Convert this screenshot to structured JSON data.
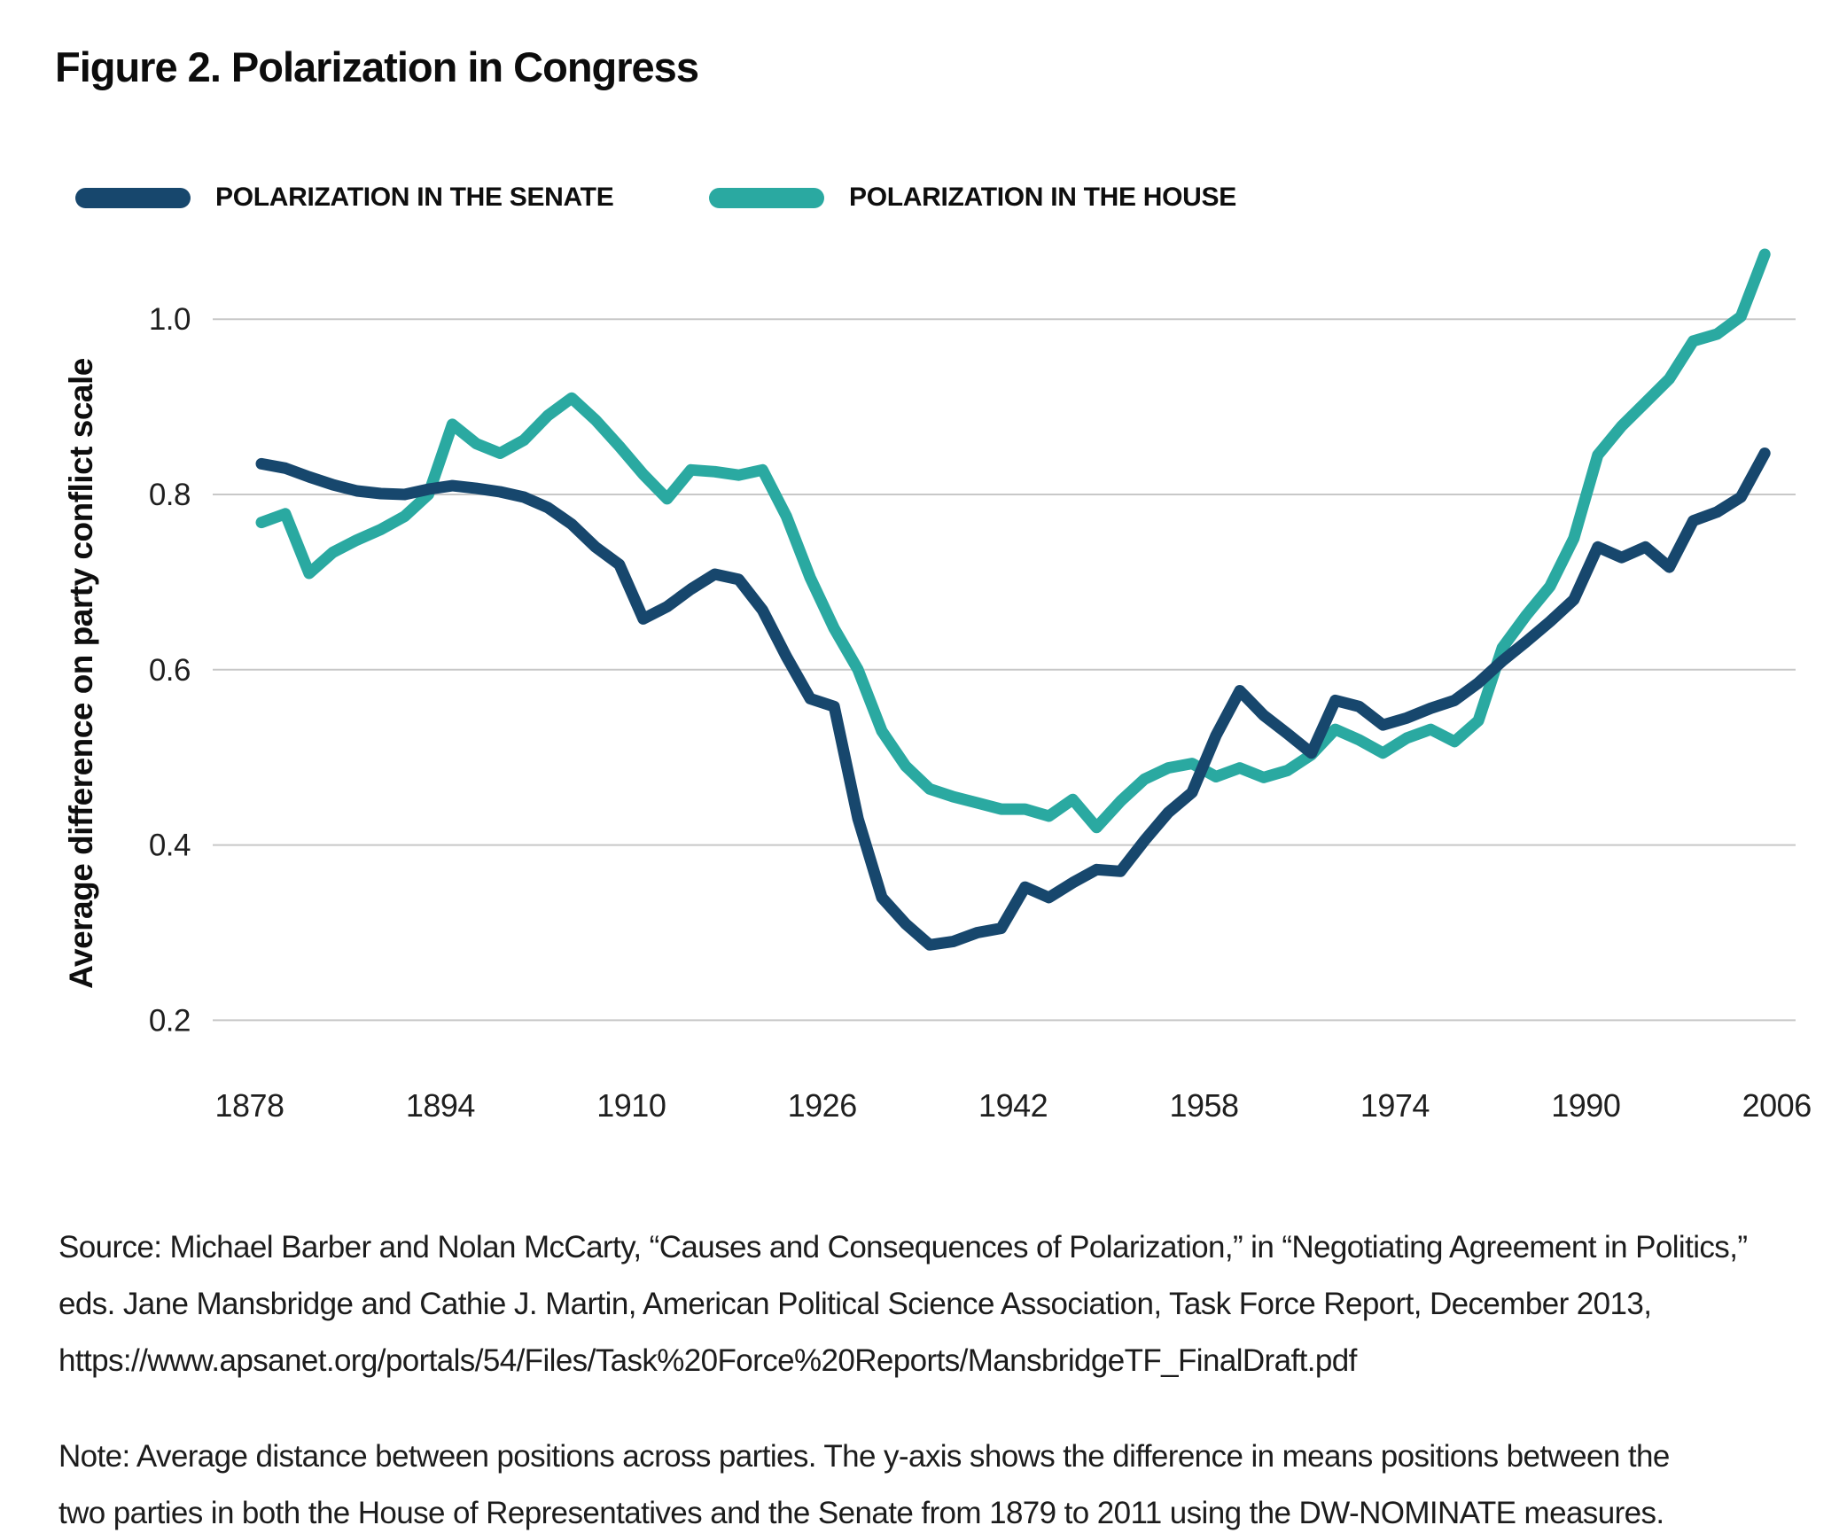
{
  "chart_data": {
    "type": "line",
    "title": "Figure 2. Polarization in Congress",
    "ylabel": "Average difference on party conflict scale",
    "xlabel": "",
    "grid": "horizontal",
    "legend_position": "top-left",
    "ylim": [
      0.13,
      1.12
    ],
    "xlim": [
      1878,
      2010
    ],
    "y_tick_labels": [
      "1.0",
      "0.8",
      "0.6",
      "0.4",
      "0.2"
    ],
    "y_tick_values": [
      1.0,
      0.8,
      0.6,
      0.4,
      0.2
    ],
    "x_tick_labels": [
      "1878",
      "1894",
      "1910",
      "1926",
      "1942",
      "1958",
      "1974",
      "1990",
      "2006"
    ],
    "x": [
      1879,
      1881,
      1883,
      1885,
      1887,
      1889,
      1891,
      1893,
      1895,
      1897,
      1899,
      1901,
      1903,
      1905,
      1907,
      1909,
      1911,
      1913,
      1915,
      1917,
      1919,
      1921,
      1923,
      1925,
      1927,
      1929,
      1931,
      1933,
      1935,
      1937,
      1939,
      1941,
      1943,
      1945,
      1947,
      1949,
      1951,
      1953,
      1955,
      1957,
      1959,
      1961,
      1963,
      1965,
      1967,
      1969,
      1971,
      1973,
      1975,
      1977,
      1979,
      1981,
      1983,
      1985,
      1987,
      1989,
      1991,
      1993,
      1995,
      1997,
      1999,
      2001,
      2003,
      2005
    ],
    "series": [
      {
        "name": "POLARIZATION IN THE SENATE",
        "color": "#17476d",
        "values": [
          0.835,
          0.83,
          0.82,
          0.811,
          0.804,
          0.801,
          0.8,
          0.806,
          0.81,
          0.807,
          0.803,
          0.797,
          0.785,
          0.766,
          0.74,
          0.72,
          0.658,
          0.672,
          0.692,
          0.709,
          0.703,
          0.668,
          0.615,
          0.567,
          0.558,
          0.43,
          0.34,
          0.31,
          0.286,
          0.29,
          0.3,
          0.305,
          0.352,
          0.34,
          0.357,
          0.372,
          0.37,
          0.405,
          0.437,
          0.46,
          0.525,
          0.576,
          0.548,
          0.527,
          0.505,
          0.565,
          0.558,
          0.537,
          0.545,
          0.556,
          0.565,
          0.585,
          0.61,
          0.632,
          0.655,
          0.68,
          0.74,
          0.728,
          0.74,
          0.717,
          0.77,
          0.78,
          0.797,
          0.847
        ]
      },
      {
        "name": "POLARIZATION IN THE HOUSE",
        "color": "#2aa9a1",
        "values": [
          0.768,
          0.778,
          0.71,
          0.734,
          0.748,
          0.76,
          0.775,
          0.8,
          0.88,
          0.858,
          0.847,
          0.862,
          0.89,
          0.91,
          0.885,
          0.855,
          0.823,
          0.795,
          0.828,
          0.826,
          0.822,
          0.828,
          0.775,
          0.705,
          0.647,
          0.6,
          0.53,
          0.49,
          0.464,
          0.455,
          0.448,
          0.441,
          0.441,
          0.433,
          0.452,
          0.42,
          0.45,
          0.475,
          0.488,
          0.493,
          0.478,
          0.488,
          0.477,
          0.485,
          0.503,
          0.532,
          0.52,
          0.505,
          0.522,
          0.532,
          0.518,
          0.542,
          0.625,
          0.662,
          0.695,
          0.75,
          0.845,
          0.878,
          0.905,
          0.932,
          0.975,
          0.983,
          1.003,
          1.074
        ]
      }
    ],
    "gridline_color": "#c8c8c8",
    "background_color": "#ffffff"
  },
  "source": {
    "lines": [
      "Source: Michael Barber and Nolan McCarty, “Causes and Consequences of Polarization,” in “Negotiating Agreement in Politics,”",
      "eds. Jane Mansbridge and Cathie J. Martin, American Political Science Association, Task Force Report, December 2013,",
      "https://www.apsanet.org/portals/54/Files/Task%20Force%20Reports/MansbridgeTF_FinalDraft.pdf"
    ]
  },
  "note": {
    "lines": [
      "Note: Average distance between positions across parties. The y-axis shows the difference in means positions between the",
      "two parties in both the House of Representatives and the Senate from 1879 to 2011 using the DW-NOMINATE measures."
    ]
  }
}
